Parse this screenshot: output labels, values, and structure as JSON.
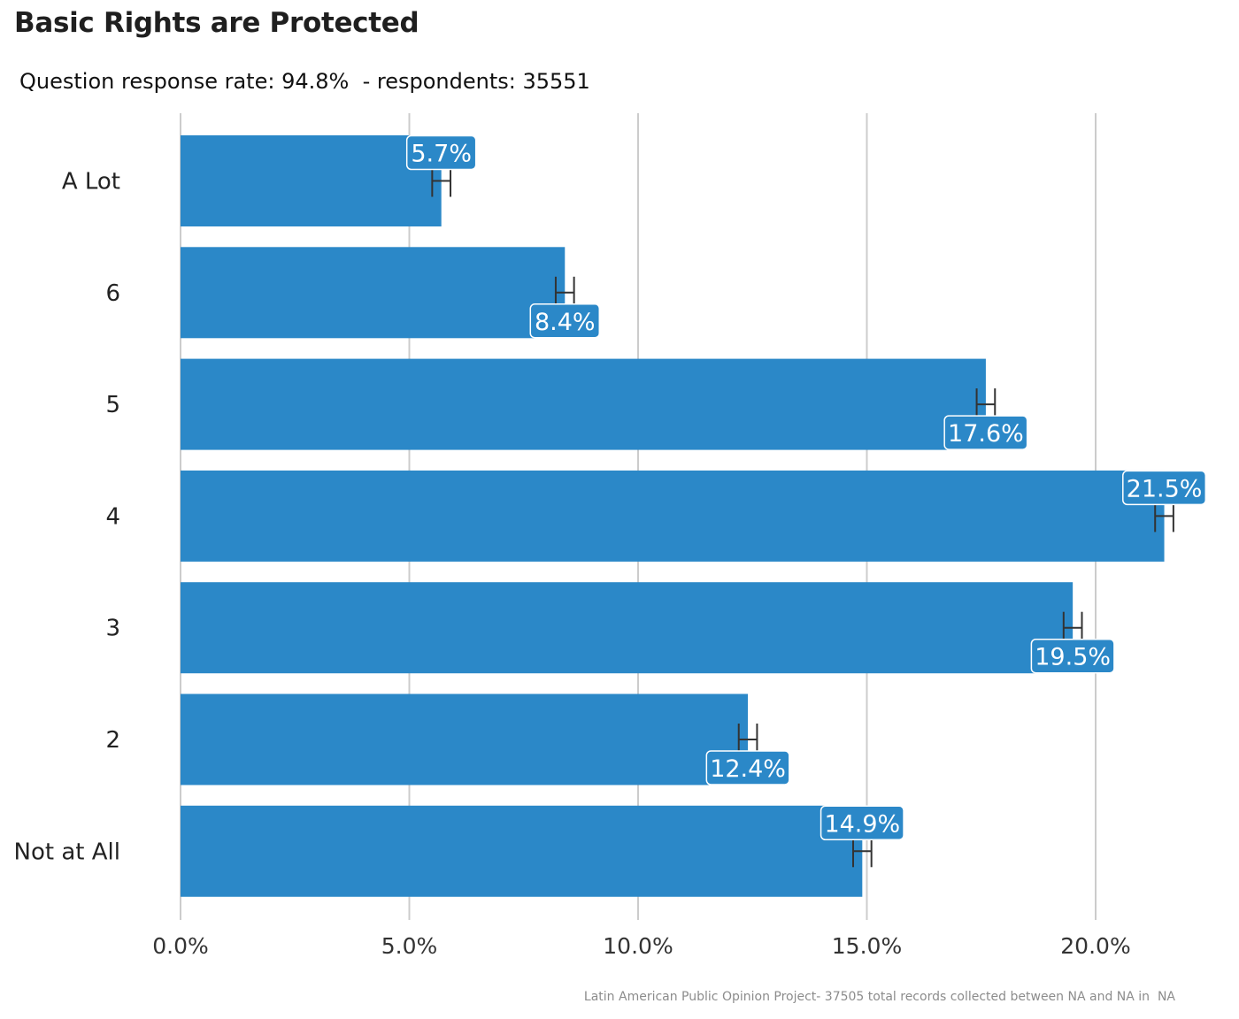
{
  "title": "Basic Rights are Protected",
  "subtitle": "Question response rate: 94.8%  - respondents: 35551",
  "caption": "Latin American Public Opinion Project- 37505 total records collected between NA and NA in  NA",
  "colors": {
    "bar": "#2b88c8",
    "grid": "#cccccc",
    "errorbar": "#333333",
    "label_border": "#ffffff"
  },
  "chart_data": {
    "type": "bar",
    "orientation": "horizontal",
    "title": "Basic Rights are Protected",
    "subtitle": "Question response rate: 94.8%  - respondents: 35551",
    "categories": [
      "A Lot",
      "6",
      "5",
      "4",
      "3",
      "2",
      "Not at All"
    ],
    "values": [
      5.7,
      8.4,
      17.6,
      21.5,
      19.5,
      12.4,
      14.9
    ],
    "value_labels": [
      "5.7%",
      "8.4%",
      "17.6%",
      "21.5%",
      "19.5%",
      "12.4%",
      "14.9%"
    ],
    "label_position": [
      "above",
      "below",
      "below",
      "above",
      "below",
      "below",
      "above"
    ],
    "error_bars": [
      [
        5.5,
        5.9
      ],
      [
        8.2,
        8.6
      ],
      [
        17.4,
        17.8
      ],
      [
        21.3,
        21.7
      ],
      [
        19.3,
        19.7
      ],
      [
        12.2,
        12.6
      ],
      [
        14.7,
        15.1
      ]
    ],
    "xlim": [
      0,
      22
    ],
    "x_ticks": [
      0,
      5,
      10,
      15,
      20
    ],
    "x_tick_labels": [
      "0.0%",
      "5.0%",
      "10.0%",
      "15.0%",
      "20.0%"
    ],
    "grid": "vertical",
    "xlabel": "",
    "ylabel": ""
  }
}
